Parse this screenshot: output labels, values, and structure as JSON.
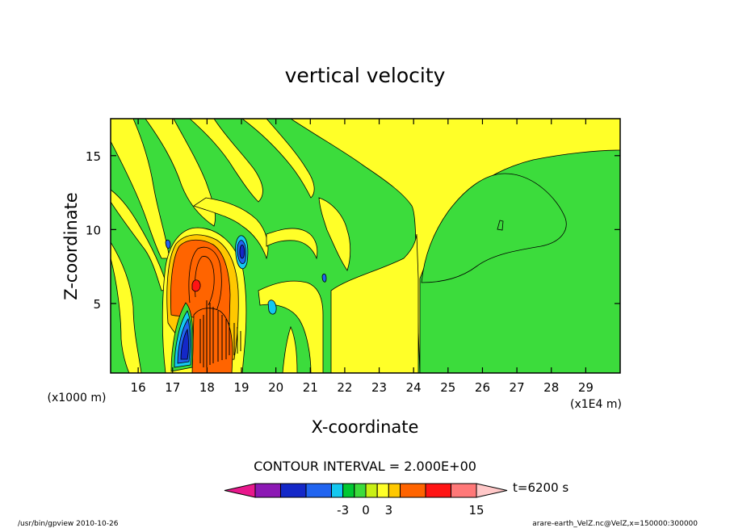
{
  "chart_data": {
    "type": "heatmap",
    "title": "vertical velocity",
    "xlabel": "X-coordinate",
    "ylabel": "Z-coordinate",
    "x_unit_label": "(x1E4 m)",
    "y_unit_label": "(x1000 m)",
    "xlim": [
      15.2,
      30.0
    ],
    "ylim": [
      0.3,
      17.5
    ],
    "x_ticks": [
      16,
      17,
      18,
      19,
      20,
      21,
      22,
      23,
      24,
      25,
      26,
      27,
      28,
      29
    ],
    "y_ticks": [
      5,
      10,
      15
    ],
    "contour_interval_text": "CONTOUR INTERVAL = 2.000E+00",
    "time_label": "t=6200 s",
    "colorbar": {
      "colors": [
        "#e8188c",
        "#8c18b4",
        "#1428c8",
        "#2064f0",
        "#14c8f0",
        "#00c832",
        "#3cdc3c",
        "#c8f014",
        "#ffff28",
        "#ffc800",
        "#ff6400",
        "#ff1414",
        "#ff7878",
        "#ffc8c8"
      ],
      "tick_labels": [
        "-3",
        "0",
        "3",
        "15"
      ]
    },
    "regions": [
      {
        "value": 2,
        "color": "#ffff28",
        "x": [
          15.2,
          24.2
        ],
        "z": [
          4.0,
          12.0
        ]
      },
      {
        "value": -1,
        "color": "#3cdc3c",
        "x": [
          24.2,
          30.0
        ],
        "z": [
          0.3,
          8.0
        ]
      },
      {
        "value": 2,
        "color": "#ffff28",
        "x": [
          24.2,
          30.0
        ],
        "z": [
          8.0,
          17.5
        ]
      },
      {
        "value": 8,
        "color": "#ff6400",
        "x": [
          16.9,
          18.2
        ],
        "z": [
          4.2,
          9.4
        ]
      },
      {
        "value": -6,
        "color": "#1428c8",
        "x": [
          17.1,
          17.5
        ],
        "z": [
          0.7,
          3.7
        ]
      },
      {
        "value": -5,
        "color": "#2064f0",
        "x": [
          18.8,
          19.1
        ],
        "z": [
          7.1,
          9.6
        ]
      }
    ]
  },
  "footer": {
    "left": "/usr/bin/gpview   2010-10-26",
    "right": "arare-earth_VelZ.nc@VelZ,x=150000:300000"
  }
}
